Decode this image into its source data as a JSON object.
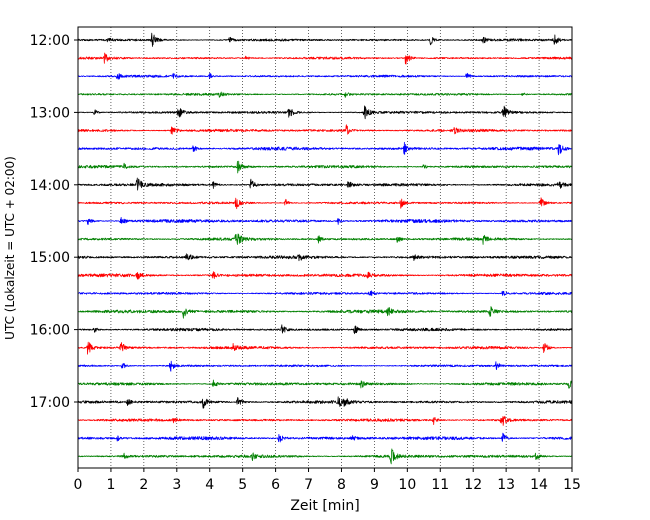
{
  "chart_data": {
    "type": "line",
    "title": "",
    "xlabel": "Zeit  [min]",
    "ylabel": "UTC (Lokalzeit = UTC + 02:00)",
    "xlim": [
      0,
      15
    ],
    "x_ticks": [
      "0",
      "1",
      "2",
      "3",
      "4",
      "5",
      "6",
      "7",
      "8",
      "9",
      "10",
      "11",
      "12",
      "13",
      "14",
      "15"
    ],
    "y_ticks": [
      "12:00",
      "13:00",
      "14:00",
      "15:00",
      "16:00",
      "17:00"
    ],
    "grid": "vertical-dotted",
    "color_cycle": [
      "#000000",
      "#ff0000",
      "#0000ff",
      "#008000"
    ],
    "traces": [
      {
        "start": "12:00",
        "color": "#000000",
        "events": [
          [
            0.9,
            0.4,
            3
          ],
          [
            2.25,
            1.0,
            8
          ],
          [
            4.6,
            0.5,
            3
          ],
          [
            10.7,
            0.7,
            5
          ],
          [
            12.3,
            0.6,
            3
          ],
          [
            14.45,
            0.8,
            6
          ]
        ]
      },
      {
        "start": "12:15",
        "color": "#ff0000",
        "events": [
          [
            0.8,
            0.8,
            6
          ],
          [
            5.1,
            0.4,
            3
          ],
          [
            9.95,
            0.9,
            7
          ]
        ]
      },
      {
        "start": "12:30",
        "color": "#0000ff",
        "events": [
          [
            1.2,
            0.5,
            4
          ],
          [
            2.9,
            0.4,
            3
          ],
          [
            4.0,
            0.3,
            3
          ],
          [
            11.8,
            0.6,
            4
          ]
        ]
      },
      {
        "start": "12:45",
        "color": "#008000",
        "events": [
          [
            4.3,
            0.3,
            3
          ],
          [
            8.1,
            0.4,
            3
          ],
          [
            13.5,
            0.3,
            3
          ]
        ]
      },
      {
        "start": "13:00",
        "color": "#000000",
        "events": [
          [
            0.5,
            0.4,
            3
          ],
          [
            3.05,
            0.8,
            6
          ],
          [
            6.4,
            0.8,
            6
          ],
          [
            8.7,
            1.0,
            8
          ],
          [
            12.9,
            1.0,
            8
          ]
        ]
      },
      {
        "start": "13:15",
        "color": "#ff0000",
        "events": [
          [
            2.85,
            0.8,
            6
          ],
          [
            8.15,
            0.6,
            5
          ],
          [
            11.4,
            0.5,
            4
          ]
        ]
      },
      {
        "start": "13:30",
        "color": "#0000ff",
        "events": [
          [
            3.5,
            0.5,
            4
          ],
          [
            9.9,
            0.8,
            6
          ],
          [
            14.6,
            0.9,
            7
          ]
        ]
      },
      {
        "start": "13:45",
        "color": "#008000",
        "events": [
          [
            1.4,
            0.3,
            3
          ],
          [
            4.85,
            0.9,
            7
          ],
          [
            10.5,
            0.3,
            3
          ]
        ]
      },
      {
        "start": "14:00",
        "color": "#000000",
        "events": [
          [
            1.8,
            0.9,
            7
          ],
          [
            4.1,
            0.5,
            4
          ],
          [
            5.25,
            0.7,
            6
          ],
          [
            8.2,
            0.6,
            4
          ],
          [
            14.6,
            0.7,
            5
          ]
        ]
      },
      {
        "start": "14:15",
        "color": "#ff0000",
        "events": [
          [
            4.8,
            0.8,
            6
          ],
          [
            6.3,
            0.5,
            4
          ],
          [
            9.8,
            0.6,
            5
          ],
          [
            14.05,
            0.9,
            7
          ]
        ]
      },
      {
        "start": "14:30",
        "color": "#0000ff",
        "events": [
          [
            0.3,
            0.6,
            5
          ],
          [
            1.3,
            0.7,
            6
          ],
          [
            7.9,
            0.3,
            3
          ]
        ]
      },
      {
        "start": "14:45",
        "color": "#008000",
        "events": [
          [
            4.8,
            1.0,
            8
          ],
          [
            7.3,
            0.5,
            4
          ],
          [
            9.7,
            0.5,
            4
          ],
          [
            12.3,
            0.6,
            4
          ]
        ]
      },
      {
        "start": "15:00",
        "color": "#000000",
        "events": [
          [
            3.3,
            0.7,
            5
          ],
          [
            6.7,
            0.5,
            4
          ],
          [
            10.2,
            0.4,
            3
          ]
        ]
      },
      {
        "start": "15:15",
        "color": "#ff0000",
        "events": [
          [
            1.8,
            0.6,
            5
          ],
          [
            4.1,
            0.5,
            4
          ],
          [
            8.8,
            0.4,
            3
          ]
        ]
      },
      {
        "start": "15:30",
        "color": "#0000ff",
        "events": [
          [
            8.85,
            0.6,
            4
          ],
          [
            12.9,
            0.5,
            4
          ]
        ]
      },
      {
        "start": "15:45",
        "color": "#008000",
        "events": [
          [
            3.2,
            0.8,
            6
          ],
          [
            9.4,
            0.6,
            5
          ],
          [
            12.5,
            0.8,
            6
          ]
        ]
      },
      {
        "start": "16:00",
        "color": "#000000",
        "events": [
          [
            0.5,
            0.4,
            3
          ],
          [
            6.2,
            0.7,
            6
          ],
          [
            8.4,
            0.7,
            5
          ]
        ]
      },
      {
        "start": "16:15",
        "color": "#ff0000",
        "events": [
          [
            0.3,
            1.0,
            8
          ],
          [
            1.3,
            0.8,
            6
          ],
          [
            4.7,
            0.6,
            4
          ],
          [
            14.15,
            0.8,
            6
          ]
        ]
      },
      {
        "start": "16:30",
        "color": "#0000ff",
        "events": [
          [
            1.35,
            0.5,
            4
          ],
          [
            2.8,
            0.8,
            6
          ],
          [
            12.7,
            0.6,
            5
          ]
        ]
      },
      {
        "start": "16:45",
        "color": "#008000",
        "events": [
          [
            4.1,
            0.6,
            5
          ],
          [
            8.6,
            0.5,
            4
          ],
          [
            14.9,
            0.6,
            5
          ]
        ]
      },
      {
        "start": "17:00",
        "color": "#000000",
        "events": [
          [
            1.5,
            0.5,
            4
          ],
          [
            3.8,
            0.8,
            6
          ],
          [
            4.85,
            0.8,
            6
          ],
          [
            7.9,
            0.7,
            6
          ],
          [
            8.1,
            0.6,
            5
          ]
        ]
      },
      {
        "start": "17:15",
        "color": "#ff0000",
        "events": [
          [
            2.9,
            0.4,
            3
          ],
          [
            10.8,
            0.5,
            4
          ],
          [
            12.85,
            1.0,
            8
          ]
        ]
      },
      {
        "start": "17:30",
        "color": "#0000ff",
        "events": [
          [
            1.2,
            0.4,
            3
          ],
          [
            6.1,
            0.8,
            6
          ],
          [
            8.3,
            0.4,
            3
          ],
          [
            12.9,
            0.7,
            5
          ]
        ]
      },
      {
        "start": "17:45",
        "color": "#008000",
        "events": [
          [
            1.4,
            0.4,
            3
          ],
          [
            5.3,
            0.4,
            3
          ],
          [
            9.5,
            1.0,
            8
          ],
          [
            13.9,
            0.5,
            4
          ]
        ]
      }
    ]
  }
}
